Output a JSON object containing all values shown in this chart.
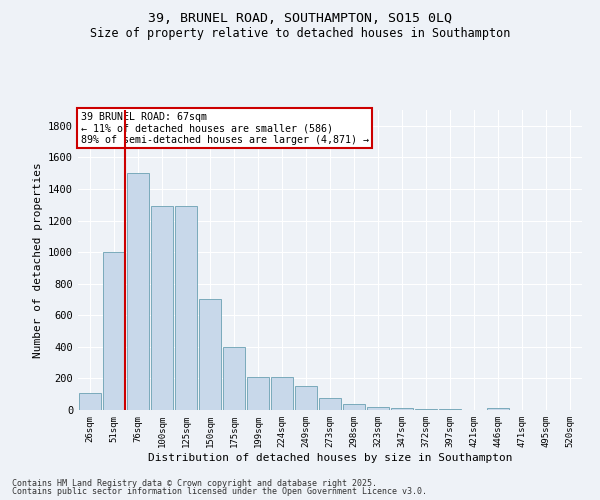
{
  "title": "39, BRUNEL ROAD, SOUTHAMPTON, SO15 0LQ",
  "subtitle": "Size of property relative to detached houses in Southampton",
  "xlabel": "Distribution of detached houses by size in Southampton",
  "ylabel": "Number of detached properties",
  "categories": [
    "26sqm",
    "51sqm",
    "76sqm",
    "100sqm",
    "125sqm",
    "150sqm",
    "175sqm",
    "199sqm",
    "224sqm",
    "249sqm",
    "273sqm",
    "298sqm",
    "323sqm",
    "347sqm",
    "372sqm",
    "397sqm",
    "421sqm",
    "446sqm",
    "471sqm",
    "495sqm",
    "520sqm"
  ],
  "values": [
    110,
    1000,
    1500,
    1290,
    1290,
    700,
    400,
    210,
    210,
    150,
    75,
    35,
    20,
    15,
    5,
    5,
    0,
    15,
    0,
    0,
    0
  ],
  "bar_color": "#c8d8ea",
  "bar_edge_color": "#7aaabb",
  "vline_x_idx": 1,
  "vline_color": "#cc0000",
  "annotation_text": "39 BRUNEL ROAD: 67sqm\n← 11% of detached houses are smaller (586)\n89% of semi-detached houses are larger (4,871) →",
  "annotation_box_color": "#ffffff",
  "annotation_box_edge": "#cc0000",
  "ylim": [
    0,
    1900
  ],
  "yticks": [
    0,
    200,
    400,
    600,
    800,
    1000,
    1200,
    1400,
    1600,
    1800
  ],
  "bg_color": "#eef2f7",
  "grid_color": "#ffffff",
  "footer_line1": "Contains HM Land Registry data © Crown copyright and database right 2025.",
  "footer_line2": "Contains public sector information licensed under the Open Government Licence v3.0."
}
